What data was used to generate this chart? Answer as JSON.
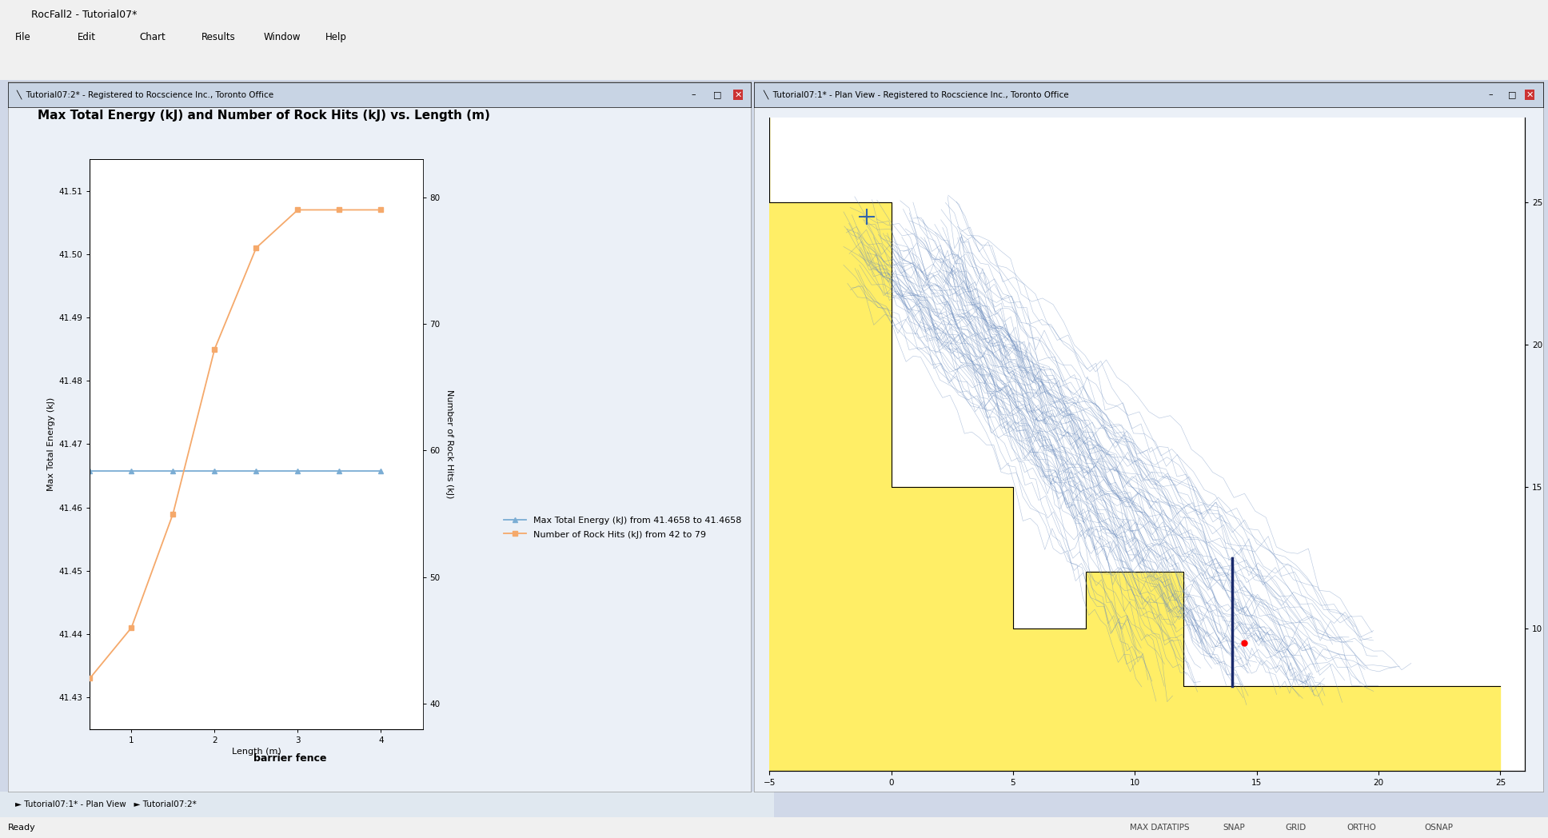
{
  "title": "Max Total Energy (kJ) and Number of Rock Hits (kJ) vs. Length (m)",
  "xlabel": "Length (m)",
  "ylabel_left": "Max Total Energy (kJ)",
  "ylabel_right": "Number of Rock Hits (kJ)",
  "subtitle": "barrier fence",
  "x_blue": [
    0.5,
    1.0,
    1.5,
    2.0,
    2.5,
    3.0,
    3.5,
    4.0
  ],
  "y_blue": [
    41.4658,
    41.4658,
    41.4658,
    41.4658,
    41.4658,
    41.4658,
    41.4658,
    41.4658
  ],
  "x_orange": [
    0.5,
    1.0,
    1.5,
    2.0,
    2.5,
    3.0,
    3.5,
    4.0
  ],
  "y_orange": [
    42,
    46,
    55,
    68,
    76,
    79,
    79,
    79
  ],
  "x_ticks": [
    1,
    2,
    3,
    4
  ],
  "ylim_left": [
    41.425,
    41.515
  ],
  "ylim_right": [
    38,
    83
  ],
  "yticks_left": [
    41.43,
    41.44,
    41.45,
    41.46,
    41.47,
    41.48,
    41.49,
    41.5,
    41.51
  ],
  "yticks_right": [
    40,
    50,
    60,
    70,
    80
  ],
  "xlim": [
    0.5,
    4.5
  ],
  "blue_color": "#7BADD4",
  "orange_color": "#F5A96B",
  "legend_blue": "Max Total Energy (kJ) from 41.4658 to 41.4658",
  "legend_orange": "Number of Rock Hits (kJ) from 42 to 79",
  "win_bg": "#D0D8E8",
  "panel_bg": "#EBF0F7",
  "plot_bg": "#FFFFFF",
  "titlebar_bg": "#C8D4E4",
  "title_fontsize": 11,
  "label_fontsize": 8,
  "tick_fontsize": 7.5,
  "legend_fontsize": 8,
  "app_title": "RocFall2 - Tutorial07*",
  "win1_title": "Tutorial07:2* - Registered to Rocscience Inc., Toronto Office",
  "win2_title": "Tutorial07:1* - Plan View - Registered to Rocscience Inc., Toronto Office",
  "statusbar_text": "Ready",
  "plan_yticks": [
    10,
    15,
    20,
    25
  ],
  "plan_xticks": [
    -5,
    0,
    5,
    10,
    15,
    20,
    25
  ],
  "plan_xlim": [
    -5,
    26
  ],
  "plan_ylim": [
    5,
    28
  ]
}
